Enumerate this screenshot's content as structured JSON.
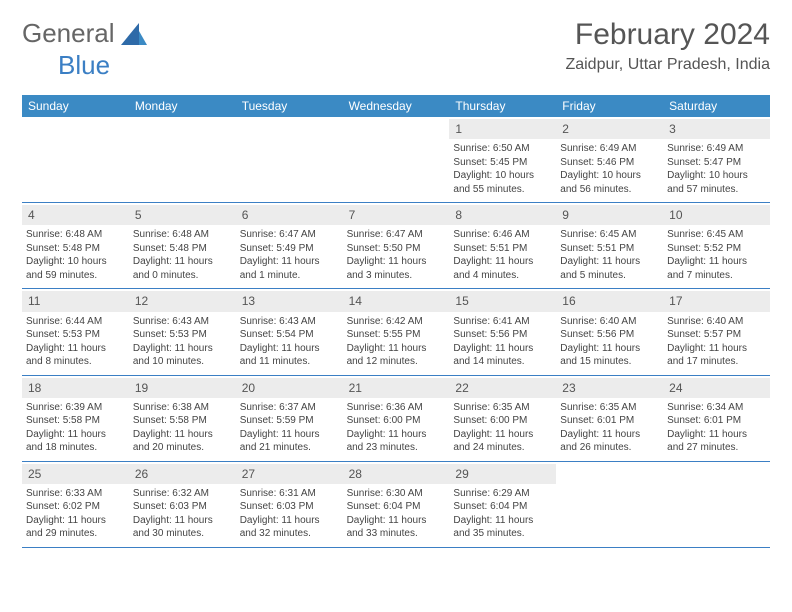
{
  "logo": {
    "text1": "General",
    "text2": "Blue"
  },
  "title": "February 2024",
  "location": "Zaidpur, Uttar Pradesh, India",
  "colors": {
    "header_bg": "#3b8ac4",
    "header_text": "#ffffff",
    "daynum_bg": "#ececec",
    "rule": "#3b7fc4",
    "body_text": "#444444",
    "title_text": "#555555"
  },
  "weekdays": [
    "Sunday",
    "Monday",
    "Tuesday",
    "Wednesday",
    "Thursday",
    "Friday",
    "Saturday"
  ],
  "weeks": [
    [
      {
        "n": "",
        "sr": "",
        "ss": "",
        "d1": "",
        "d2": ""
      },
      {
        "n": "",
        "sr": "",
        "ss": "",
        "d1": "",
        "d2": ""
      },
      {
        "n": "",
        "sr": "",
        "ss": "",
        "d1": "",
        "d2": ""
      },
      {
        "n": "",
        "sr": "",
        "ss": "",
        "d1": "",
        "d2": ""
      },
      {
        "n": "1",
        "sr": "Sunrise: 6:50 AM",
        "ss": "Sunset: 5:45 PM",
        "d1": "Daylight: 10 hours",
        "d2": "and 55 minutes."
      },
      {
        "n": "2",
        "sr": "Sunrise: 6:49 AM",
        "ss": "Sunset: 5:46 PM",
        "d1": "Daylight: 10 hours",
        "d2": "and 56 minutes."
      },
      {
        "n": "3",
        "sr": "Sunrise: 6:49 AM",
        "ss": "Sunset: 5:47 PM",
        "d1": "Daylight: 10 hours",
        "d2": "and 57 minutes."
      }
    ],
    [
      {
        "n": "4",
        "sr": "Sunrise: 6:48 AM",
        "ss": "Sunset: 5:48 PM",
        "d1": "Daylight: 10 hours",
        "d2": "and 59 minutes."
      },
      {
        "n": "5",
        "sr": "Sunrise: 6:48 AM",
        "ss": "Sunset: 5:48 PM",
        "d1": "Daylight: 11 hours",
        "d2": "and 0 minutes."
      },
      {
        "n": "6",
        "sr": "Sunrise: 6:47 AM",
        "ss": "Sunset: 5:49 PM",
        "d1": "Daylight: 11 hours",
        "d2": "and 1 minute."
      },
      {
        "n": "7",
        "sr": "Sunrise: 6:47 AM",
        "ss": "Sunset: 5:50 PM",
        "d1": "Daylight: 11 hours",
        "d2": "and 3 minutes."
      },
      {
        "n": "8",
        "sr": "Sunrise: 6:46 AM",
        "ss": "Sunset: 5:51 PM",
        "d1": "Daylight: 11 hours",
        "d2": "and 4 minutes."
      },
      {
        "n": "9",
        "sr": "Sunrise: 6:45 AM",
        "ss": "Sunset: 5:51 PM",
        "d1": "Daylight: 11 hours",
        "d2": "and 5 minutes."
      },
      {
        "n": "10",
        "sr": "Sunrise: 6:45 AM",
        "ss": "Sunset: 5:52 PM",
        "d1": "Daylight: 11 hours",
        "d2": "and 7 minutes."
      }
    ],
    [
      {
        "n": "11",
        "sr": "Sunrise: 6:44 AM",
        "ss": "Sunset: 5:53 PM",
        "d1": "Daylight: 11 hours",
        "d2": "and 8 minutes."
      },
      {
        "n": "12",
        "sr": "Sunrise: 6:43 AM",
        "ss": "Sunset: 5:53 PM",
        "d1": "Daylight: 11 hours",
        "d2": "and 10 minutes."
      },
      {
        "n": "13",
        "sr": "Sunrise: 6:43 AM",
        "ss": "Sunset: 5:54 PM",
        "d1": "Daylight: 11 hours",
        "d2": "and 11 minutes."
      },
      {
        "n": "14",
        "sr": "Sunrise: 6:42 AM",
        "ss": "Sunset: 5:55 PM",
        "d1": "Daylight: 11 hours",
        "d2": "and 12 minutes."
      },
      {
        "n": "15",
        "sr": "Sunrise: 6:41 AM",
        "ss": "Sunset: 5:56 PM",
        "d1": "Daylight: 11 hours",
        "d2": "and 14 minutes."
      },
      {
        "n": "16",
        "sr": "Sunrise: 6:40 AM",
        "ss": "Sunset: 5:56 PM",
        "d1": "Daylight: 11 hours",
        "d2": "and 15 minutes."
      },
      {
        "n": "17",
        "sr": "Sunrise: 6:40 AM",
        "ss": "Sunset: 5:57 PM",
        "d1": "Daylight: 11 hours",
        "d2": "and 17 minutes."
      }
    ],
    [
      {
        "n": "18",
        "sr": "Sunrise: 6:39 AM",
        "ss": "Sunset: 5:58 PM",
        "d1": "Daylight: 11 hours",
        "d2": "and 18 minutes."
      },
      {
        "n": "19",
        "sr": "Sunrise: 6:38 AM",
        "ss": "Sunset: 5:58 PM",
        "d1": "Daylight: 11 hours",
        "d2": "and 20 minutes."
      },
      {
        "n": "20",
        "sr": "Sunrise: 6:37 AM",
        "ss": "Sunset: 5:59 PM",
        "d1": "Daylight: 11 hours",
        "d2": "and 21 minutes."
      },
      {
        "n": "21",
        "sr": "Sunrise: 6:36 AM",
        "ss": "Sunset: 6:00 PM",
        "d1": "Daylight: 11 hours",
        "d2": "and 23 minutes."
      },
      {
        "n": "22",
        "sr": "Sunrise: 6:35 AM",
        "ss": "Sunset: 6:00 PM",
        "d1": "Daylight: 11 hours",
        "d2": "and 24 minutes."
      },
      {
        "n": "23",
        "sr": "Sunrise: 6:35 AM",
        "ss": "Sunset: 6:01 PM",
        "d1": "Daylight: 11 hours",
        "d2": "and 26 minutes."
      },
      {
        "n": "24",
        "sr": "Sunrise: 6:34 AM",
        "ss": "Sunset: 6:01 PM",
        "d1": "Daylight: 11 hours",
        "d2": "and 27 minutes."
      }
    ],
    [
      {
        "n": "25",
        "sr": "Sunrise: 6:33 AM",
        "ss": "Sunset: 6:02 PM",
        "d1": "Daylight: 11 hours",
        "d2": "and 29 minutes."
      },
      {
        "n": "26",
        "sr": "Sunrise: 6:32 AM",
        "ss": "Sunset: 6:03 PM",
        "d1": "Daylight: 11 hours",
        "d2": "and 30 minutes."
      },
      {
        "n": "27",
        "sr": "Sunrise: 6:31 AM",
        "ss": "Sunset: 6:03 PM",
        "d1": "Daylight: 11 hours",
        "d2": "and 32 minutes."
      },
      {
        "n": "28",
        "sr": "Sunrise: 6:30 AM",
        "ss": "Sunset: 6:04 PM",
        "d1": "Daylight: 11 hours",
        "d2": "and 33 minutes."
      },
      {
        "n": "29",
        "sr": "Sunrise: 6:29 AM",
        "ss": "Sunset: 6:04 PM",
        "d1": "Daylight: 11 hours",
        "d2": "and 35 minutes."
      },
      {
        "n": "",
        "sr": "",
        "ss": "",
        "d1": "",
        "d2": ""
      },
      {
        "n": "",
        "sr": "",
        "ss": "",
        "d1": "",
        "d2": ""
      }
    ]
  ]
}
